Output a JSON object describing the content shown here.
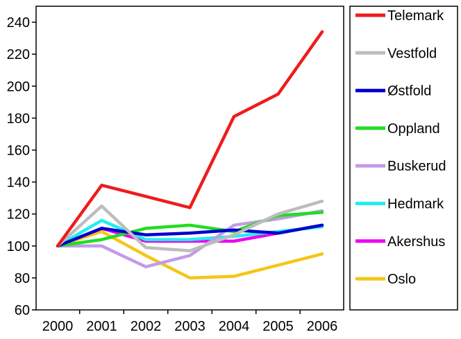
{
  "chart_data": {
    "type": "line",
    "title": "",
    "xlabel": "",
    "ylabel": "",
    "x": [
      "2000",
      "2001",
      "2002",
      "2003",
      "2004",
      "2005",
      "2006"
    ],
    "ylim": [
      60,
      250
    ],
    "yticks": [
      60,
      80,
      100,
      120,
      140,
      160,
      180,
      200,
      220,
      240
    ],
    "grid": false,
    "legend_position": "right",
    "series": [
      {
        "name": "Telemark",
        "color": "#ee1c1c",
        "values": [
          100,
          138,
          131,
          124,
          181,
          195,
          234
        ]
      },
      {
        "name": "Vestfold",
        "color": "#bdbdbd",
        "values": [
          100,
          125,
          99,
          97,
          107,
          120,
          128
        ]
      },
      {
        "name": "Østfold",
        "color": "#0000cc",
        "values": [
          100,
          111,
          107,
          108,
          110,
          108,
          113
        ]
      },
      {
        "name": "Oppland",
        "color": "#22dd22",
        "values": [
          100,
          104,
          111,
          113,
          109,
          119,
          121
        ]
      },
      {
        "name": "Buskerud",
        "color": "#c29be8",
        "values": [
          100,
          100,
          87,
          94,
          113,
          117,
          122
        ]
      },
      {
        "name": "Hedmark",
        "color": "#1fefef",
        "values": [
          100,
          116,
          104,
          104,
          106,
          109,
          112
        ]
      },
      {
        "name": "Akershus",
        "color": "#ee00ee",
        "values": [
          100,
          111,
          103,
          103,
          103,
          108,
          113
        ]
      },
      {
        "name": "Oslo",
        "color": "#f5c518",
        "values": [
          100,
          109,
          94,
          80,
          81,
          88,
          95
        ]
      }
    ]
  }
}
